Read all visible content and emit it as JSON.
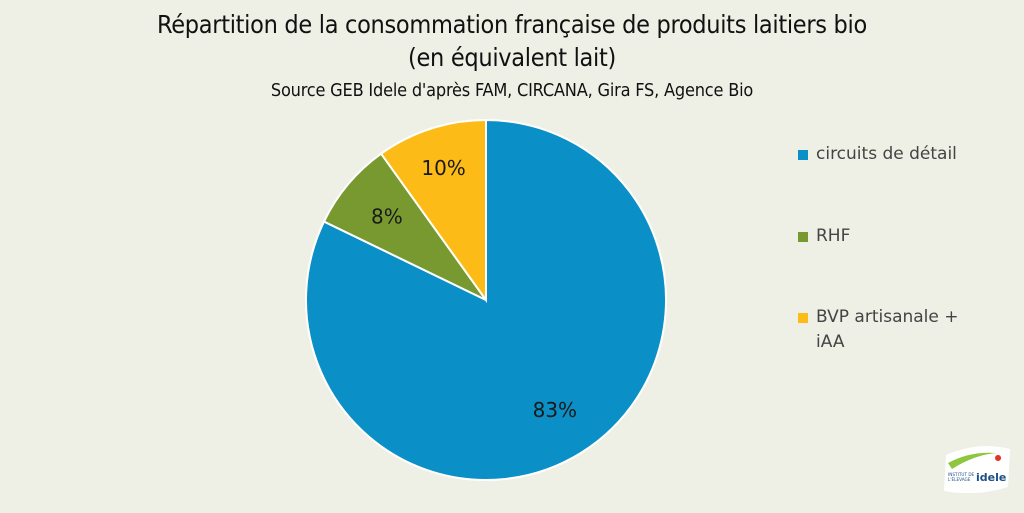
{
  "chart_data": {
    "type": "pie",
    "title_line1": "Répartition de la consommation française de produits laitiers bio",
    "title_line2": "(en équivalent lait)",
    "subtitle": "Source GEB Idele d'après FAM, CIRCANA, Gira FS, Agence Bio",
    "start_angle_deg": 0,
    "direction": "clockwise",
    "legend_position": "right",
    "slices": [
      {
        "label": "circuits de détail",
        "value": 83,
        "display": "83%",
        "color": "#0a8fc7"
      },
      {
        "label": "RHF",
        "value": 8,
        "display": "8%",
        "color": "#77992f"
      },
      {
        "label": "BVP artisanale + iAA",
        "value": 10,
        "display": "10%",
        "color": "#fcbb16"
      }
    ]
  },
  "logo": {
    "line1": "INSTITUT DE",
    "line2": "L'ÉLEVAGE",
    "brand": "idele"
  }
}
